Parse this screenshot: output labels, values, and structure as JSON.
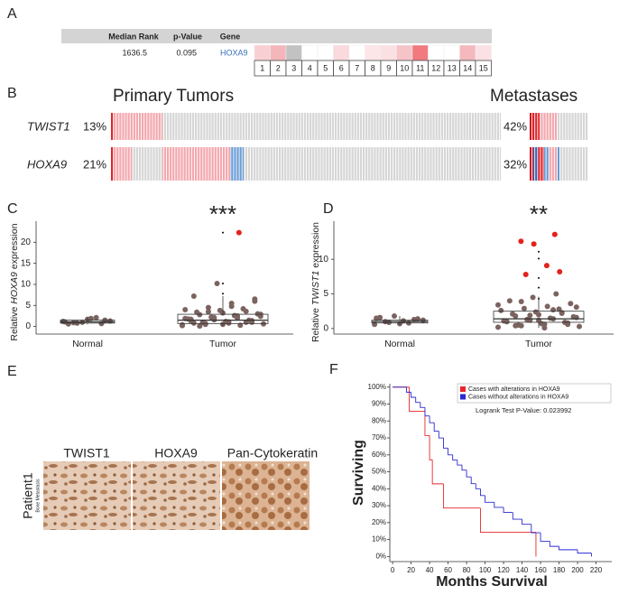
{
  "panel_labels": [
    "A",
    "B",
    "C",
    "D",
    "E",
    "F"
  ],
  "gene_table": {
    "headers": [
      "Median Rank",
      "p-Value",
      "Gene"
    ],
    "row": [
      "1636.5",
      "0.095",
      "HOXA9"
    ],
    "cells": [
      {
        "label": "1",
        "color": "#f8d0d3"
      },
      {
        "label": "2",
        "color": "#f4b6bb"
      },
      {
        "label": "3",
        "color": "#c2c2c2"
      },
      {
        "label": "4",
        "color": "#ffffff"
      },
      {
        "label": "5",
        "color": "#ffffff"
      },
      {
        "label": "6",
        "color": "#fadadd"
      },
      {
        "label": "7",
        "color": "#ffffff"
      },
      {
        "label": "8",
        "color": "#fce6e8"
      },
      {
        "label": "9",
        "color": "#fbe0e3"
      },
      {
        "label": "10",
        "color": "#f6c3c7"
      },
      {
        "label": "11",
        "color": "#f07a80"
      },
      {
        "label": "12",
        "color": "#ffffff"
      },
      {
        "label": "13",
        "color": "#ffffff"
      },
      {
        "label": "14",
        "color": "#f4b8bd"
      },
      {
        "label": "15",
        "color": "#fbe1e4"
      }
    ]
  },
  "oncoprint": {
    "groups": [
      "Primary Tumors",
      "Metastases"
    ],
    "tracks": [
      {
        "gene": "TWIST1",
        "primary": "13%",
        "metastases": "42%"
      },
      {
        "gene": "HOXA9",
        "primary": "21%",
        "metastases": "32%"
      }
    ]
  },
  "chart_data": [
    {
      "type": "box",
      "significance": "***",
      "y_label": [
        "Relative ",
        "HOXA9",
        " expression"
      ],
      "ylim": [
        -1.8,
        25
      ],
      "yticks": [
        0,
        5,
        10,
        15,
        20
      ],
      "categories": [
        "Normal",
        "Tumor"
      ],
      "boxes": [
        {
          "low": 0.5,
          "q1": 0.8,
          "median": 1.1,
          "q3": 1.5,
          "high": 2.1
        },
        {
          "low": 0.1,
          "q1": 0.7,
          "median": 1.5,
          "q3": 2.9,
          "high": 7.2
        }
      ],
      "points": [
        [
          1.2,
          0.8,
          1.9,
          1.5,
          0.6,
          1.0,
          2.1,
          1.3,
          0.9,
          1.7,
          0.7,
          1.1
        ],
        [
          0.2,
          0.5,
          0.8,
          1.0,
          1.3,
          1.6,
          2.0,
          2.4,
          2.8,
          3.2,
          3.6,
          4.0,
          4.5,
          5.5,
          6.5,
          7.2,
          10.2,
          0.3,
          0.6,
          0.9,
          1.2,
          1.5,
          1.8,
          2.2,
          2.6,
          3.0,
          3.4,
          3.8,
          4.2,
          0.4,
          0.7,
          1.1,
          1.4,
          1.7,
          2.1,
          2.5,
          2.9,
          0.1,
          0.5,
          1.0,
          1.9,
          3.5,
          4.8,
          6.0,
          0.8
        ]
      ],
      "highlights": [
        [],
        [
          22.3
        ]
      ],
      "outliers": [
        [],
        [
          22.3,
          10.2,
          7.8
        ]
      ],
      "point_color": "#7b6360",
      "highlight_color": "#e3231b",
      "outlier_color": "#000000"
    },
    {
      "type": "box",
      "significance": "**",
      "y_label": [
        "Relative ",
        "TWIST1",
        " expression"
      ],
      "ylim": [
        -0.8,
        15.5
      ],
      "yticks": [
        0,
        5,
        10
      ],
      "categories": [
        "Normal",
        "Tumor"
      ],
      "boxes": [
        {
          "low": 0.5,
          "q1": 0.8,
          "median": 1.0,
          "q3": 1.2,
          "high": 1.8
        },
        {
          "low": 0.1,
          "q1": 0.9,
          "median": 1.4,
          "q3": 2.5,
          "high": 4.6
        }
      ],
      "points": [
        [
          0.6,
          0.9,
          1.1,
          1.4,
          1.6,
          1.8,
          0.8,
          1.2,
          1.0,
          0.7,
          1.3,
          1.5
        ],
        [
          0.2,
          0.4,
          0.6,
          0.8,
          1.0,
          1.2,
          1.4,
          1.6,
          1.8,
          2.0,
          2.3,
          2.6,
          2.9,
          3.2,
          3.6,
          4.0,
          4.5,
          5.0,
          0.3,
          0.5,
          0.7,
          0.9,
          1.1,
          1.3,
          1.5,
          1.7,
          2.1,
          2.4,
          2.8,
          3.4,
          3.9,
          0.1,
          0.6,
          1.0,
          1.9,
          2.7,
          3.1,
          0.4,
          1.2,
          2.2
        ]
      ],
      "highlights": [
        [],
        [
          13.6,
          12.6,
          12.2,
          9.1,
          8.2,
          7.8
        ]
      ],
      "outliers": [
        [],
        [
          11.1,
          10.1,
          7.3,
          5.9,
          4.3
        ]
      ],
      "point_color": "#7b6360",
      "highlight_color": "#e3231b",
      "outlier_color": "#000000"
    },
    {
      "type": "km",
      "y_label": "Surviving",
      "x_label": "Months Survival",
      "annotation": "Logrank Test P-Value: 0.023992",
      "xlim": [
        -3,
        237
      ],
      "xticks": [
        0,
        20,
        40,
        60,
        80,
        100,
        120,
        140,
        160,
        180,
        200,
        220
      ],
      "ylim": [
        -3,
        102
      ],
      "yticks": [
        {
          "value": 0,
          "label": "0%"
        },
        {
          "value": 10,
          "label": "10%"
        },
        {
          "value": 20,
          "label": "20%"
        },
        {
          "value": 30,
          "label": "30%"
        },
        {
          "value": 40,
          "label": "40%"
        },
        {
          "value": 50,
          "label": "50%"
        },
        {
          "value": 60,
          "label": "60%"
        },
        {
          "value": 70,
          "label": "70%"
        },
        {
          "value": 80,
          "label": "80%"
        },
        {
          "value": 90,
          "label": "90%"
        },
        {
          "value": 100,
          "label": "100%"
        }
      ],
      "series": [
        {
          "name": "Cases with alterations in HOXA9",
          "color": "#e8262b",
          "x": [
            0,
            18,
            35,
            40,
            43,
            55,
            95,
            155
          ],
          "values": [
            100,
            85.7,
            71.4,
            57.1,
            42.9,
            28.6,
            14.3,
            0
          ]
        },
        {
          "name": "Cases without alterations in HOXA9",
          "color": "#2a2ad0",
          "x": [
            0,
            15,
            20,
            25,
            30,
            35,
            40,
            45,
            50,
            55,
            60,
            65,
            70,
            75,
            80,
            85,
            90,
            95,
            100,
            110,
            120,
            130,
            140,
            150,
            160,
            170,
            180,
            200,
            215
          ],
          "values": [
            100,
            97,
            94,
            91,
            88,
            83,
            79,
            74,
            70,
            64,
            60,
            57,
            54,
            51,
            47,
            43,
            40,
            36,
            32,
            29,
            26,
            22,
            19,
            14,
            9,
            6,
            4,
            2,
            0
          ]
        }
      ],
      "legend": "upper right"
    }
  ],
  "ihc": {
    "stains": [
      "TWIST1",
      "HOXA9",
      "Pan-Cytokeratin"
    ],
    "patient": "Patient1",
    "sample": "Bone Metastasis"
  }
}
